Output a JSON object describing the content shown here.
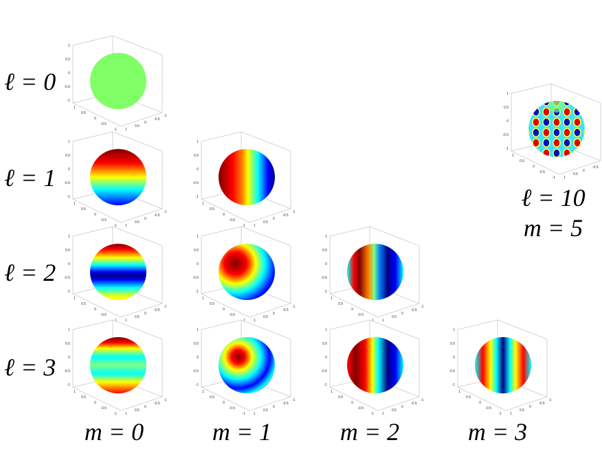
{
  "row_labels": [
    "ℓ = 0",
    "ℓ = 1",
    "ℓ = 2",
    "ℓ = 3"
  ],
  "column_labels": [
    "m = 0",
    "m = 1",
    "m = 2",
    "m = 3"
  ],
  "inset_labels": [
    "ℓ = 10",
    "m = 5"
  ],
  "axis_ticks": [
    "1",
    "0.5",
    "0",
    "-0.5",
    "-1"
  ]
}
